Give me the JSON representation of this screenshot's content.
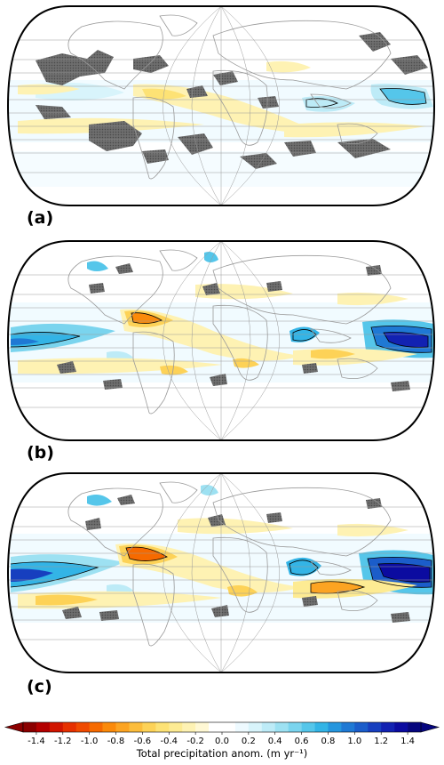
{
  "panels": [
    {
      "label": "(a)"
    },
    {
      "label": "(b)"
    },
    {
      "label": "(c)"
    }
  ],
  "colorbar": {
    "title": "Total precipitation anom. (m yr⁻¹)",
    "ticks": [
      "-1.4",
      "-1.2",
      "-1.0",
      "-0.8",
      "-0.6",
      "-0.4",
      "-0.2",
      "0.0",
      "0.2",
      "0.4",
      "0.6",
      "0.8",
      "1.0",
      "1.2",
      "1.4"
    ],
    "levels": [
      -1.5,
      -1.4,
      -1.3,
      -1.2,
      -1.1,
      -1.0,
      -0.9,
      -0.8,
      -0.7,
      -0.6,
      -0.5,
      -0.4,
      -0.3,
      -0.2,
      -0.1,
      0.0,
      0.1,
      0.2,
      0.3,
      0.4,
      0.5,
      0.6,
      0.7,
      0.8,
      0.9,
      1.0,
      1.1,
      1.2,
      1.3,
      1.4,
      1.5
    ],
    "colors": [
      "#8b0000",
      "#b30000",
      "#d11500",
      "#e63000",
      "#f04a00",
      "#f66a00",
      "#fb8a0a",
      "#fca422",
      "#fcbd3c",
      "#fdd257",
      "#fde275",
      "#fdeb93",
      "#fef2b3",
      "#fff8d4",
      "#ffffff",
      "#ffffff",
      "#eefaff",
      "#d8f4fb",
      "#bdebf7",
      "#9de1f2",
      "#7ad4ee",
      "#55c6ea",
      "#33b4e6",
      "#2596de",
      "#1f79d4",
      "#1b5dca",
      "#173fbf",
      "#1222b2",
      "#0b0ba0",
      "#06067e"
    ]
  },
  "colors": {
    "land_outline": "#9a9a9a",
    "hatch": "#6e6e6e",
    "contour": "#000000",
    "grid": "#9a9a9a"
  }
}
